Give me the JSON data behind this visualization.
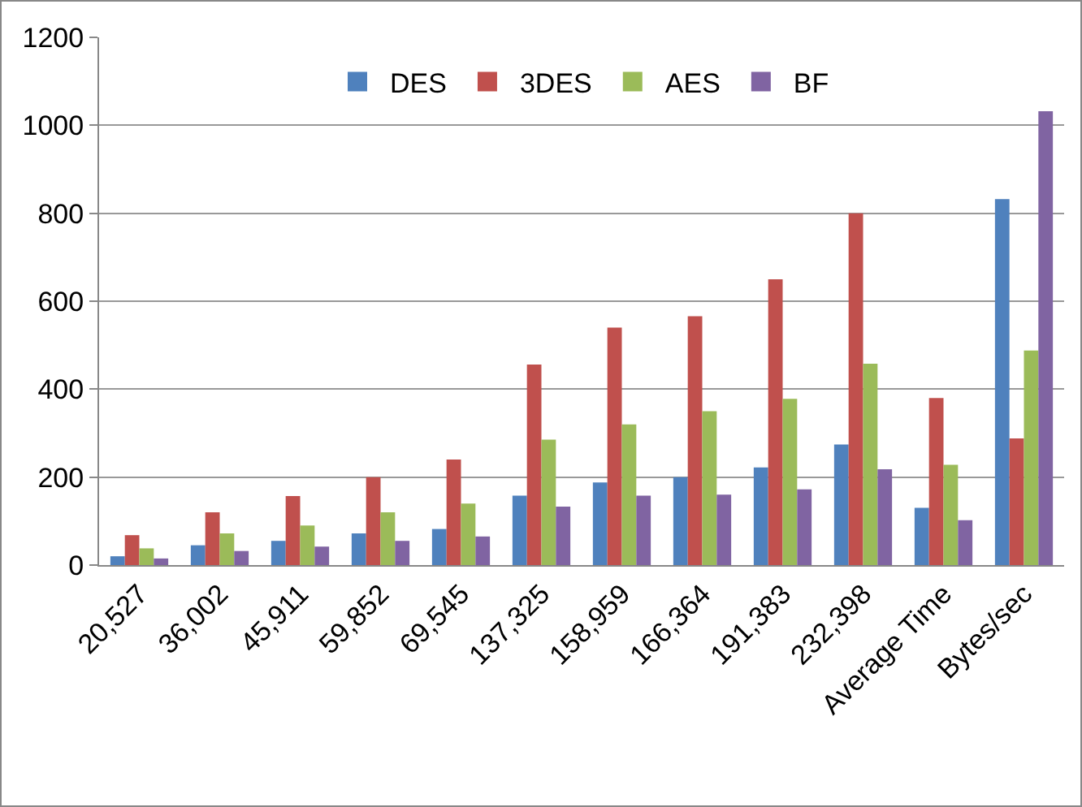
{
  "chart_data": {
    "type": "bar",
    "categories": [
      "20,527",
      "36,002",
      "45,911",
      "59,852",
      "69,545",
      "137,325",
      "158,959",
      "166,364",
      "191,383",
      "232,398",
      "Average Time",
      "Bytes/sec"
    ],
    "series": [
      {
        "name": "DES",
        "color": "#4f81bd",
        "values": [
          20,
          45,
          55,
          72,
          82,
          158,
          188,
          200,
          222,
          274,
          130,
          832
        ]
      },
      {
        "name": "3DES",
        "color": "#c0504d",
        "values": [
          68,
          120,
          157,
          200,
          240,
          456,
          540,
          566,
          650,
          800,
          380,
          288
        ]
      },
      {
        "name": "AES",
        "color": "#9bbb59",
        "values": [
          38,
          72,
          90,
          120,
          140,
          285,
          320,
          350,
          378,
          458,
          228,
          488
        ]
      },
      {
        "name": "BF",
        "color": "#8064a2",
        "values": [
          15,
          32,
          42,
          55,
          65,
          133,
          158,
          160,
          172,
          218,
          102,
          1032
        ]
      }
    ],
    "ylim": [
      0,
      1200
    ],
    "yticks": [
      0,
      200,
      400,
      600,
      800,
      1000,
      1200
    ],
    "grid": "y",
    "legend": "top"
  }
}
